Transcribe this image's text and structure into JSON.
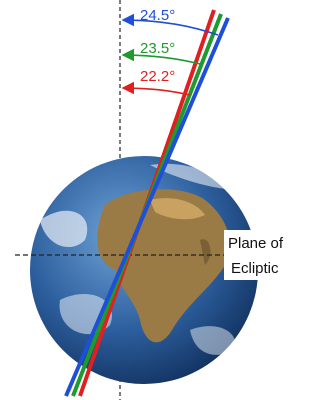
{
  "angles": [
    "24.5°",
    "23.5°",
    "22.2°"
  ],
  "plane_label": [
    "Plane of",
    "Ecliptic"
  ]
}
